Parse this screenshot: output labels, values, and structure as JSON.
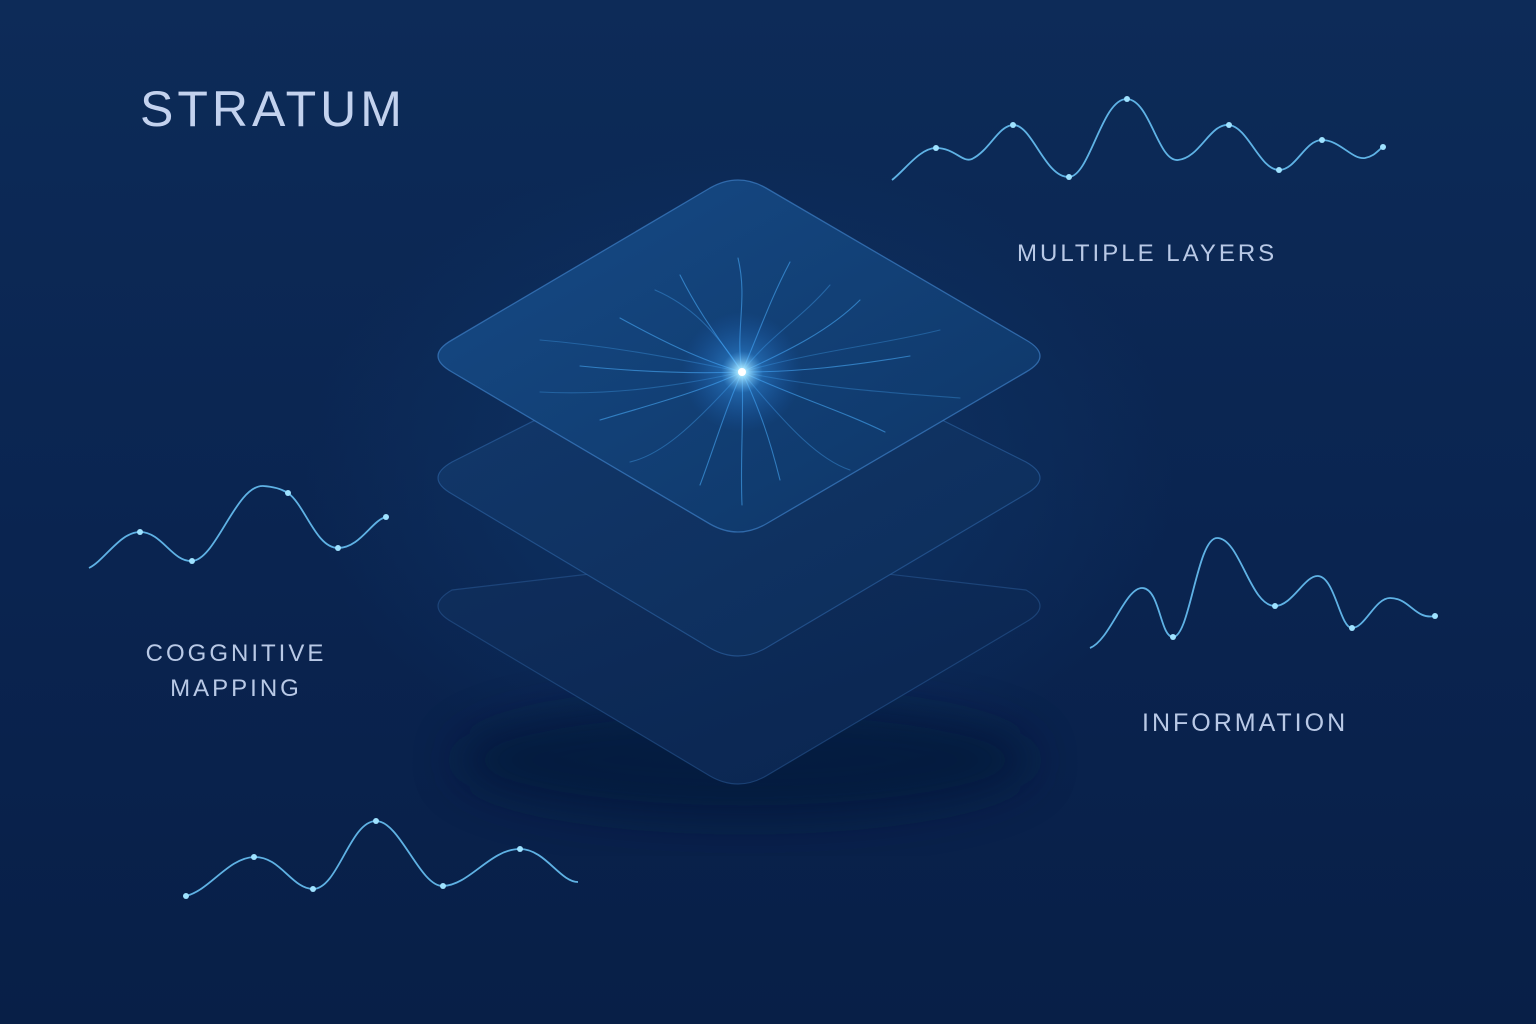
{
  "brand": {
    "title": "STRATUM"
  },
  "labels": {
    "multiple_layers": "MULTIPLE LAYERS",
    "cognitive_line1": "COGGNITIVE",
    "cognitive_line2": "MAPPING",
    "information": "INFORMATION"
  },
  "colors": {
    "background": "#0b2550",
    "accent_glow": "#5fc8ff",
    "text": "#b9c9e6"
  },
  "icons": {
    "center_graphic": "stacked-layers-icon",
    "waves": "signal-wave-icon"
  }
}
